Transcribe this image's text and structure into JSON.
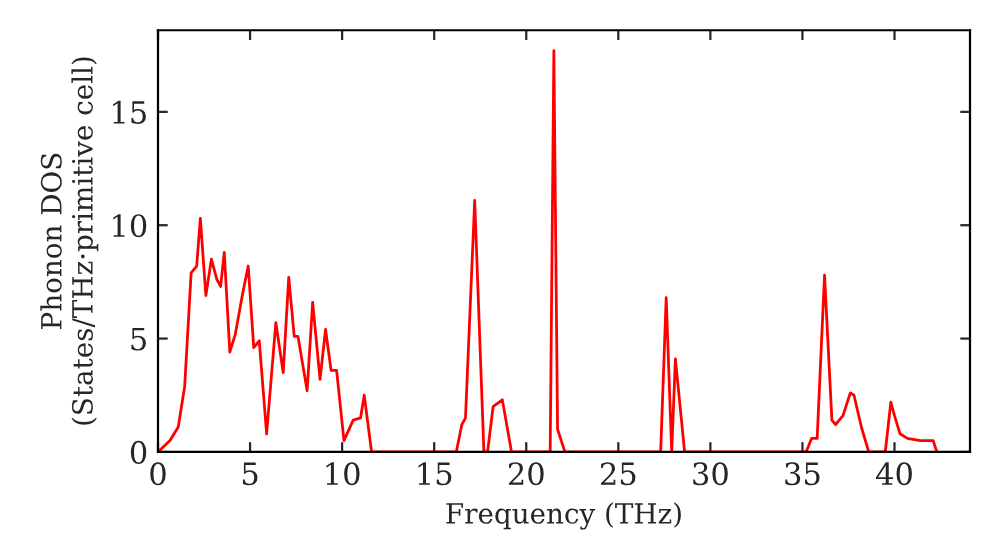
{
  "chart_data": {
    "type": "line",
    "xlabel": "Frequency (THz)",
    "ylabel": "Phonon DOS\n(States/THz·primitive cell)",
    "xlim": [
      0,
      44.1
    ],
    "ylim": [
      0,
      18.6
    ],
    "xticks": [
      0,
      5,
      10,
      15,
      20,
      25,
      30,
      35,
      40
    ],
    "yticks": [
      0,
      5,
      10,
      15
    ],
    "grid": false,
    "legend": false,
    "series": [
      {
        "color": "#ff0000",
        "x": [
          0,
          0.65,
          1.1,
          1.45,
          1.8,
          2.1,
          2.3,
          2.6,
          2.9,
          3.2,
          3.4,
          3.6,
          3.9,
          4.2,
          4.6,
          4.9,
          5.2,
          5.5,
          5.9,
          6.4,
          6.8,
          7.1,
          7.4,
          7.6,
          8.1,
          8.4,
          8.8,
          9.1,
          9.4,
          9.7,
          10.1,
          10.6,
          11.0,
          11.2,
          11.6,
          16.2,
          16.5,
          16.7,
          17.2,
          17.7,
          17.9,
          18.2,
          18.7,
          19.2,
          21.3,
          21.5,
          21.7,
          22.1,
          27.3,
          27.6,
          27.9,
          28.1,
          28.6,
          35.2,
          35.5,
          35.8,
          36.2,
          36.6,
          36.8,
          37.2,
          37.6,
          37.8,
          38.2,
          38.6,
          39.5,
          39.8,
          40.0,
          40.3,
          40.7,
          41.4,
          42.1,
          42.3
        ],
        "values": [
          0,
          0.5,
          1.1,
          2.9,
          7.9,
          8.2,
          10.3,
          6.9,
          8.5,
          7.6,
          7.3,
          8.8,
          4.4,
          5.2,
          7.0,
          8.2,
          4.6,
          4.9,
          0.8,
          5.7,
          3.5,
          7.7,
          5.1,
          5.1,
          2.7,
          6.6,
          3.2,
          5.4,
          3.6,
          3.6,
          0.5,
          1.4,
          1.5,
          2.5,
          0,
          0,
          1.2,
          1.5,
          11.1,
          0,
          0,
          2.0,
          2.3,
          0,
          0,
          17.7,
          1.0,
          0,
          0,
          6.8,
          0,
          4.1,
          0,
          0,
          0.6,
          0.6,
          7.8,
          1.4,
          1.2,
          1.6,
          2.6,
          2.5,
          1.1,
          0,
          0,
          2.2,
          1.6,
          0.8,
          0.6,
          0.5,
          0.5,
          0
        ]
      }
    ]
  }
}
